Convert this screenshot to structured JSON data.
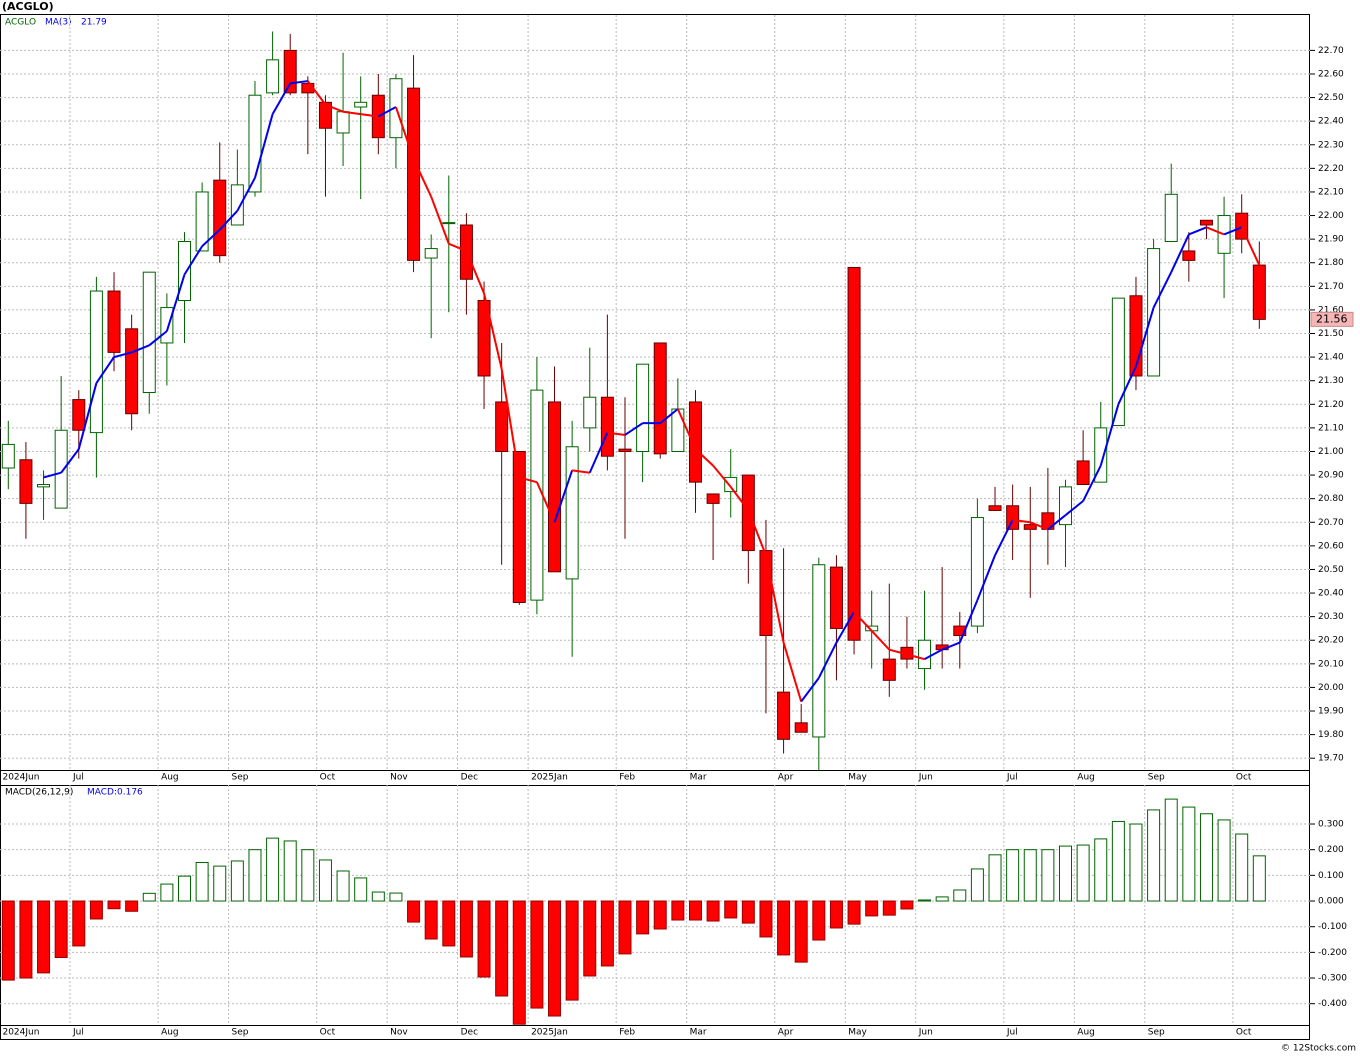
{
  "title": "(ACGLO)",
  "credit": "© 12Stocks.com",
  "chart_data": [
    {
      "type": "candlestick",
      "name": "ACGLO",
      "categories": [
        "2024Jun",
        null,
        null,
        null,
        "Jul",
        null,
        null,
        null,
        null,
        "Aug",
        null,
        null,
        null,
        "Sep",
        null,
        null,
        null,
        null,
        "Oct",
        null,
        null,
        null,
        "Nov",
        null,
        null,
        null,
        "Dec",
        null,
        null,
        null,
        "2025Jan",
        null,
        null,
        null,
        null,
        "Feb",
        null,
        null,
        null,
        "Mar",
        null,
        null,
        null,
        null,
        "Apr",
        null,
        null,
        null,
        "May",
        null,
        null,
        null,
        "Jun",
        null,
        null,
        null,
        null,
        "Jul",
        null,
        null,
        null,
        "Aug",
        null,
        null,
        null,
        "Sep",
        null,
        null,
        null,
        null,
        "Oct",
        null
      ],
      "open": [
        20.93,
        20.965,
        20.85,
        20.76,
        21.22,
        21.08,
        21.68,
        21.52,
        21.25,
        21.46,
        21.64,
        21.85,
        22.15,
        21.96,
        22.1,
        22.52,
        22.7,
        22.56,
        22.48,
        22.35,
        22.46,
        22.51,
        22.33,
        22.54,
        21.82,
        21.97,
        21.96,
        21.64,
        21.21,
        21.0,
        20.37,
        21.21,
        20.46,
        21.1,
        21.23,
        21.01,
        21.0,
        21.46,
        21.0,
        21.21,
        20.82,
        20.83,
        20.9,
        20.58,
        19.98,
        19.85,
        19.79,
        20.51,
        21.78,
        20.24,
        20.12,
        20.17,
        20.08,
        20.18,
        20.26,
        20.26,
        20.77,
        20.77,
        20.69,
        20.74,
        20.69,
        20.96,
        20.87,
        21.11,
        21.66,
        21.32,
        21.89,
        21.85,
        21.98,
        21.84,
        22.01,
        21.79
      ],
      "high": [
        21.13,
        21.04,
        20.92,
        21.32,
        21.26,
        21.74,
        21.76,
        21.58,
        21.76,
        21.67,
        21.93,
        22.14,
        22.31,
        22.28,
        22.57,
        22.78,
        22.77,
        22.59,
        22.51,
        22.69,
        22.59,
        22.6,
        22.6,
        22.68,
        21.92,
        22.17,
        22.01,
        21.72,
        21.46,
        21.0,
        21.4,
        21.36,
        21.13,
        21.44,
        21.58,
        21.23,
        21.37,
        21.46,
        21.31,
        21.26,
        20.82,
        21.01,
        20.9,
        20.71,
        20.59,
        19.93,
        20.55,
        20.56,
        21.78,
        20.41,
        20.44,
        20.3,
        20.41,
        20.51,
        20.32,
        20.8,
        20.85,
        20.86,
        20.85,
        20.93,
        20.88,
        21.09,
        21.21,
        21.65,
        21.74,
        21.9,
        22.22,
        21.93,
        21.98,
        22.08,
        22.09,
        21.89
      ],
      "low": [
        20.84,
        20.63,
        20.71,
        20.76,
        20.97,
        20.89,
        21.34,
        21.09,
        21.16,
        21.28,
        21.46,
        21.85,
        21.8,
        21.96,
        22.08,
        22.51,
        22.51,
        22.26,
        22.08,
        22.21,
        22.07,
        22.26,
        22.2,
        21.76,
        21.48,
        21.59,
        21.58,
        21.18,
        20.52,
        20.35,
        20.31,
        20.49,
        20.13,
        21.0,
        20.92,
        20.63,
        20.87,
        20.97,
        21.0,
        20.74,
        20.54,
        20.72,
        20.44,
        19.89,
        19.72,
        19.81,
        19.65,
        20.03,
        20.14,
        20.08,
        19.96,
        20.08,
        19.99,
        20.08,
        20.08,
        20.23,
        20.75,
        20.54,
        20.38,
        20.52,
        20.51,
        20.86,
        20.87,
        21.11,
        21.26,
        21.32,
        21.89,
        21.72,
        21.9,
        21.65,
        21.84,
        21.52
      ],
      "close": [
        21.03,
        20.78,
        20.86,
        21.09,
        21.09,
        21.68,
        21.42,
        21.16,
        21.76,
        21.61,
        21.89,
        22.1,
        21.83,
        22.13,
        22.51,
        22.66,
        22.52,
        22.52,
        22.37,
        22.44,
        22.48,
        22.33,
        22.58,
        21.81,
        21.86,
        21.97,
        21.73,
        21.32,
        21.0,
        20.36,
        21.26,
        20.49,
        21.02,
        21.23,
        20.98,
        21.0,
        21.37,
        20.99,
        21.18,
        20.87,
        20.78,
        20.89,
        20.58,
        20.22,
        19.78,
        19.81,
        20.52,
        20.25,
        20.2,
        20.26,
        20.03,
        20.12,
        20.2,
        20.16,
        20.22,
        20.72,
        20.75,
        20.67,
        20.67,
        20.67,
        20.85,
        20.86,
        21.1,
        21.65,
        21.32,
        21.86,
        22.09,
        21.81,
        21.96,
        22.0,
        21.9,
        21.56
      ],
      "up_color": "#006400",
      "down_color": "#ff0000",
      "ma": {
        "name": "MA(3)",
        "last": 21.79,
        "up_color": "#0000ee",
        "down_color": "#ff0000",
        "values": [
          null,
          null,
          20.89,
          20.91,
          21.01,
          21.29,
          21.4,
          21.42,
          21.45,
          21.51,
          21.75,
          21.87,
          21.94,
          22.02,
          22.16,
          22.43,
          22.56,
          22.57,
          22.47,
          22.44,
          22.43,
          22.42,
          22.46,
          22.24,
          22.08,
          21.88,
          21.85,
          21.67,
          21.35,
          20.89,
          20.87,
          20.7,
          20.92,
          20.91,
          21.08,
          21.07,
          21.12,
          21.12,
          21.18,
          21.01,
          20.94,
          20.85,
          20.75,
          20.56,
          20.19,
          19.94,
          20.04,
          20.19,
          20.32,
          20.24,
          20.16,
          20.14,
          20.12,
          20.16,
          20.19,
          20.37,
          20.56,
          20.71,
          20.7,
          20.67,
          20.73,
          20.79,
          20.94,
          21.2,
          21.36,
          21.61,
          21.76,
          21.92,
          21.95,
          21.92,
          21.95,
          21.79
        ]
      },
      "last_price": 21.56,
      "ylim": [
        19.65,
        22.85
      ],
      "yticks": [
        {
          "value": 19.7,
          "label": "19.70"
        },
        {
          "value": 19.8,
          "label": "19.80"
        },
        {
          "value": 19.9,
          "label": "19.90"
        },
        {
          "value": 20.0,
          "label": "20.00"
        },
        {
          "value": 20.1,
          "label": "20.10"
        },
        {
          "value": 20.2,
          "label": "20.20"
        },
        {
          "value": 20.3,
          "label": "20.30"
        },
        {
          "value": 20.4,
          "label": "20.40"
        },
        {
          "value": 20.5,
          "label": "20.50"
        },
        {
          "value": 20.6,
          "label": "20.60"
        },
        {
          "value": 20.7,
          "label": "20.70"
        },
        {
          "value": 20.8,
          "label": "20.80"
        },
        {
          "value": 20.9,
          "label": "20.90"
        },
        {
          "value": 21.0,
          "label": "21.00"
        },
        {
          "value": 21.1,
          "label": "21.10"
        },
        {
          "value": 21.2,
          "label": "21.20"
        },
        {
          "value": 21.3,
          "label": "21.30"
        },
        {
          "value": 21.4,
          "label": "21.40"
        },
        {
          "value": 21.5,
          "label": "21.50"
        },
        {
          "value": 21.6,
          "label": "21.60"
        },
        {
          "value": 21.7,
          "label": "21.70"
        },
        {
          "value": 21.8,
          "label": "21.80"
        },
        {
          "value": 21.9,
          "label": "21.90"
        },
        {
          "value": 22.0,
          "label": "22.00"
        },
        {
          "value": 22.1,
          "label": "22.10"
        },
        {
          "value": 22.2,
          "label": "22.20"
        },
        {
          "value": 22.3,
          "label": "22.30"
        },
        {
          "value": 22.4,
          "label": "22.40"
        },
        {
          "value": 22.5,
          "label": "22.50"
        },
        {
          "value": 22.6,
          "label": "22.60"
        },
        {
          "value": 22.7,
          "label": "22.70"
        }
      ],
      "grid": true
    },
    {
      "type": "bar",
      "name": "MACD(26,12,9)",
      "legend_text": "MACD:0.176",
      "categories": [
        "2024Jun",
        null,
        null,
        null,
        "Jul",
        null,
        null,
        null,
        null,
        "Aug",
        null,
        null,
        null,
        "Sep",
        null,
        null,
        null,
        null,
        "Oct",
        null,
        null,
        null,
        "Nov",
        null,
        null,
        null,
        "Dec",
        null,
        null,
        null,
        "2025Jan",
        null,
        null,
        null,
        null,
        "Feb",
        null,
        null,
        null,
        "Mar",
        null,
        null,
        null,
        null,
        "Apr",
        null,
        null,
        null,
        "May",
        null,
        null,
        null,
        "Jun",
        null,
        null,
        null,
        null,
        "Jul",
        null,
        null,
        null,
        "Aug",
        null,
        null,
        null,
        "Sep",
        null,
        null,
        null,
        null,
        "Oct",
        null
      ],
      "values": [
        -0.308,
        -0.3,
        -0.28,
        -0.22,
        -0.175,
        -0.07,
        -0.03,
        -0.04,
        0.03,
        0.066,
        0.097,
        0.15,
        0.136,
        0.156,
        0.2,
        0.245,
        0.234,
        0.2,
        0.16,
        0.117,
        0.09,
        0.035,
        0.031,
        -0.082,
        -0.148,
        -0.175,
        -0.218,
        -0.296,
        -0.37,
        -0.48,
        -0.417,
        -0.448,
        -0.386,
        -0.292,
        -0.253,
        -0.206,
        -0.128,
        -0.109,
        -0.074,
        -0.074,
        -0.078,
        -0.066,
        -0.086,
        -0.14,
        -0.21,
        -0.238,
        -0.152,
        -0.105,
        -0.09,
        -0.058,
        -0.055,
        -0.031,
        0.004,
        0.016,
        0.043,
        0.125,
        0.18,
        0.2,
        0.2,
        0.2,
        0.214,
        0.218,
        0.242,
        0.31,
        0.3,
        0.355,
        0.397,
        0.366,
        0.34,
        0.316,
        0.261,
        0.176
      ],
      "up_color": "#006400",
      "down_color": "#ff0000",
      "ylim": [
        -0.483,
        0.452
      ],
      "yticks": [
        {
          "value": 0.3,
          "label": "0.300"
        },
        {
          "value": 0.2,
          "label": "0.200"
        },
        {
          "value": 0.1,
          "label": "0.100"
        },
        {
          "value": 0,
          "label": "0.000"
        },
        {
          "value": -0.1,
          "label": "-0.100"
        },
        {
          "value": -0.2,
          "label": "-0.200"
        },
        {
          "value": -0.3,
          "label": "-0.300"
        },
        {
          "value": -0.4,
          "label": "-0.400"
        }
      ],
      "grid": true
    }
  ]
}
